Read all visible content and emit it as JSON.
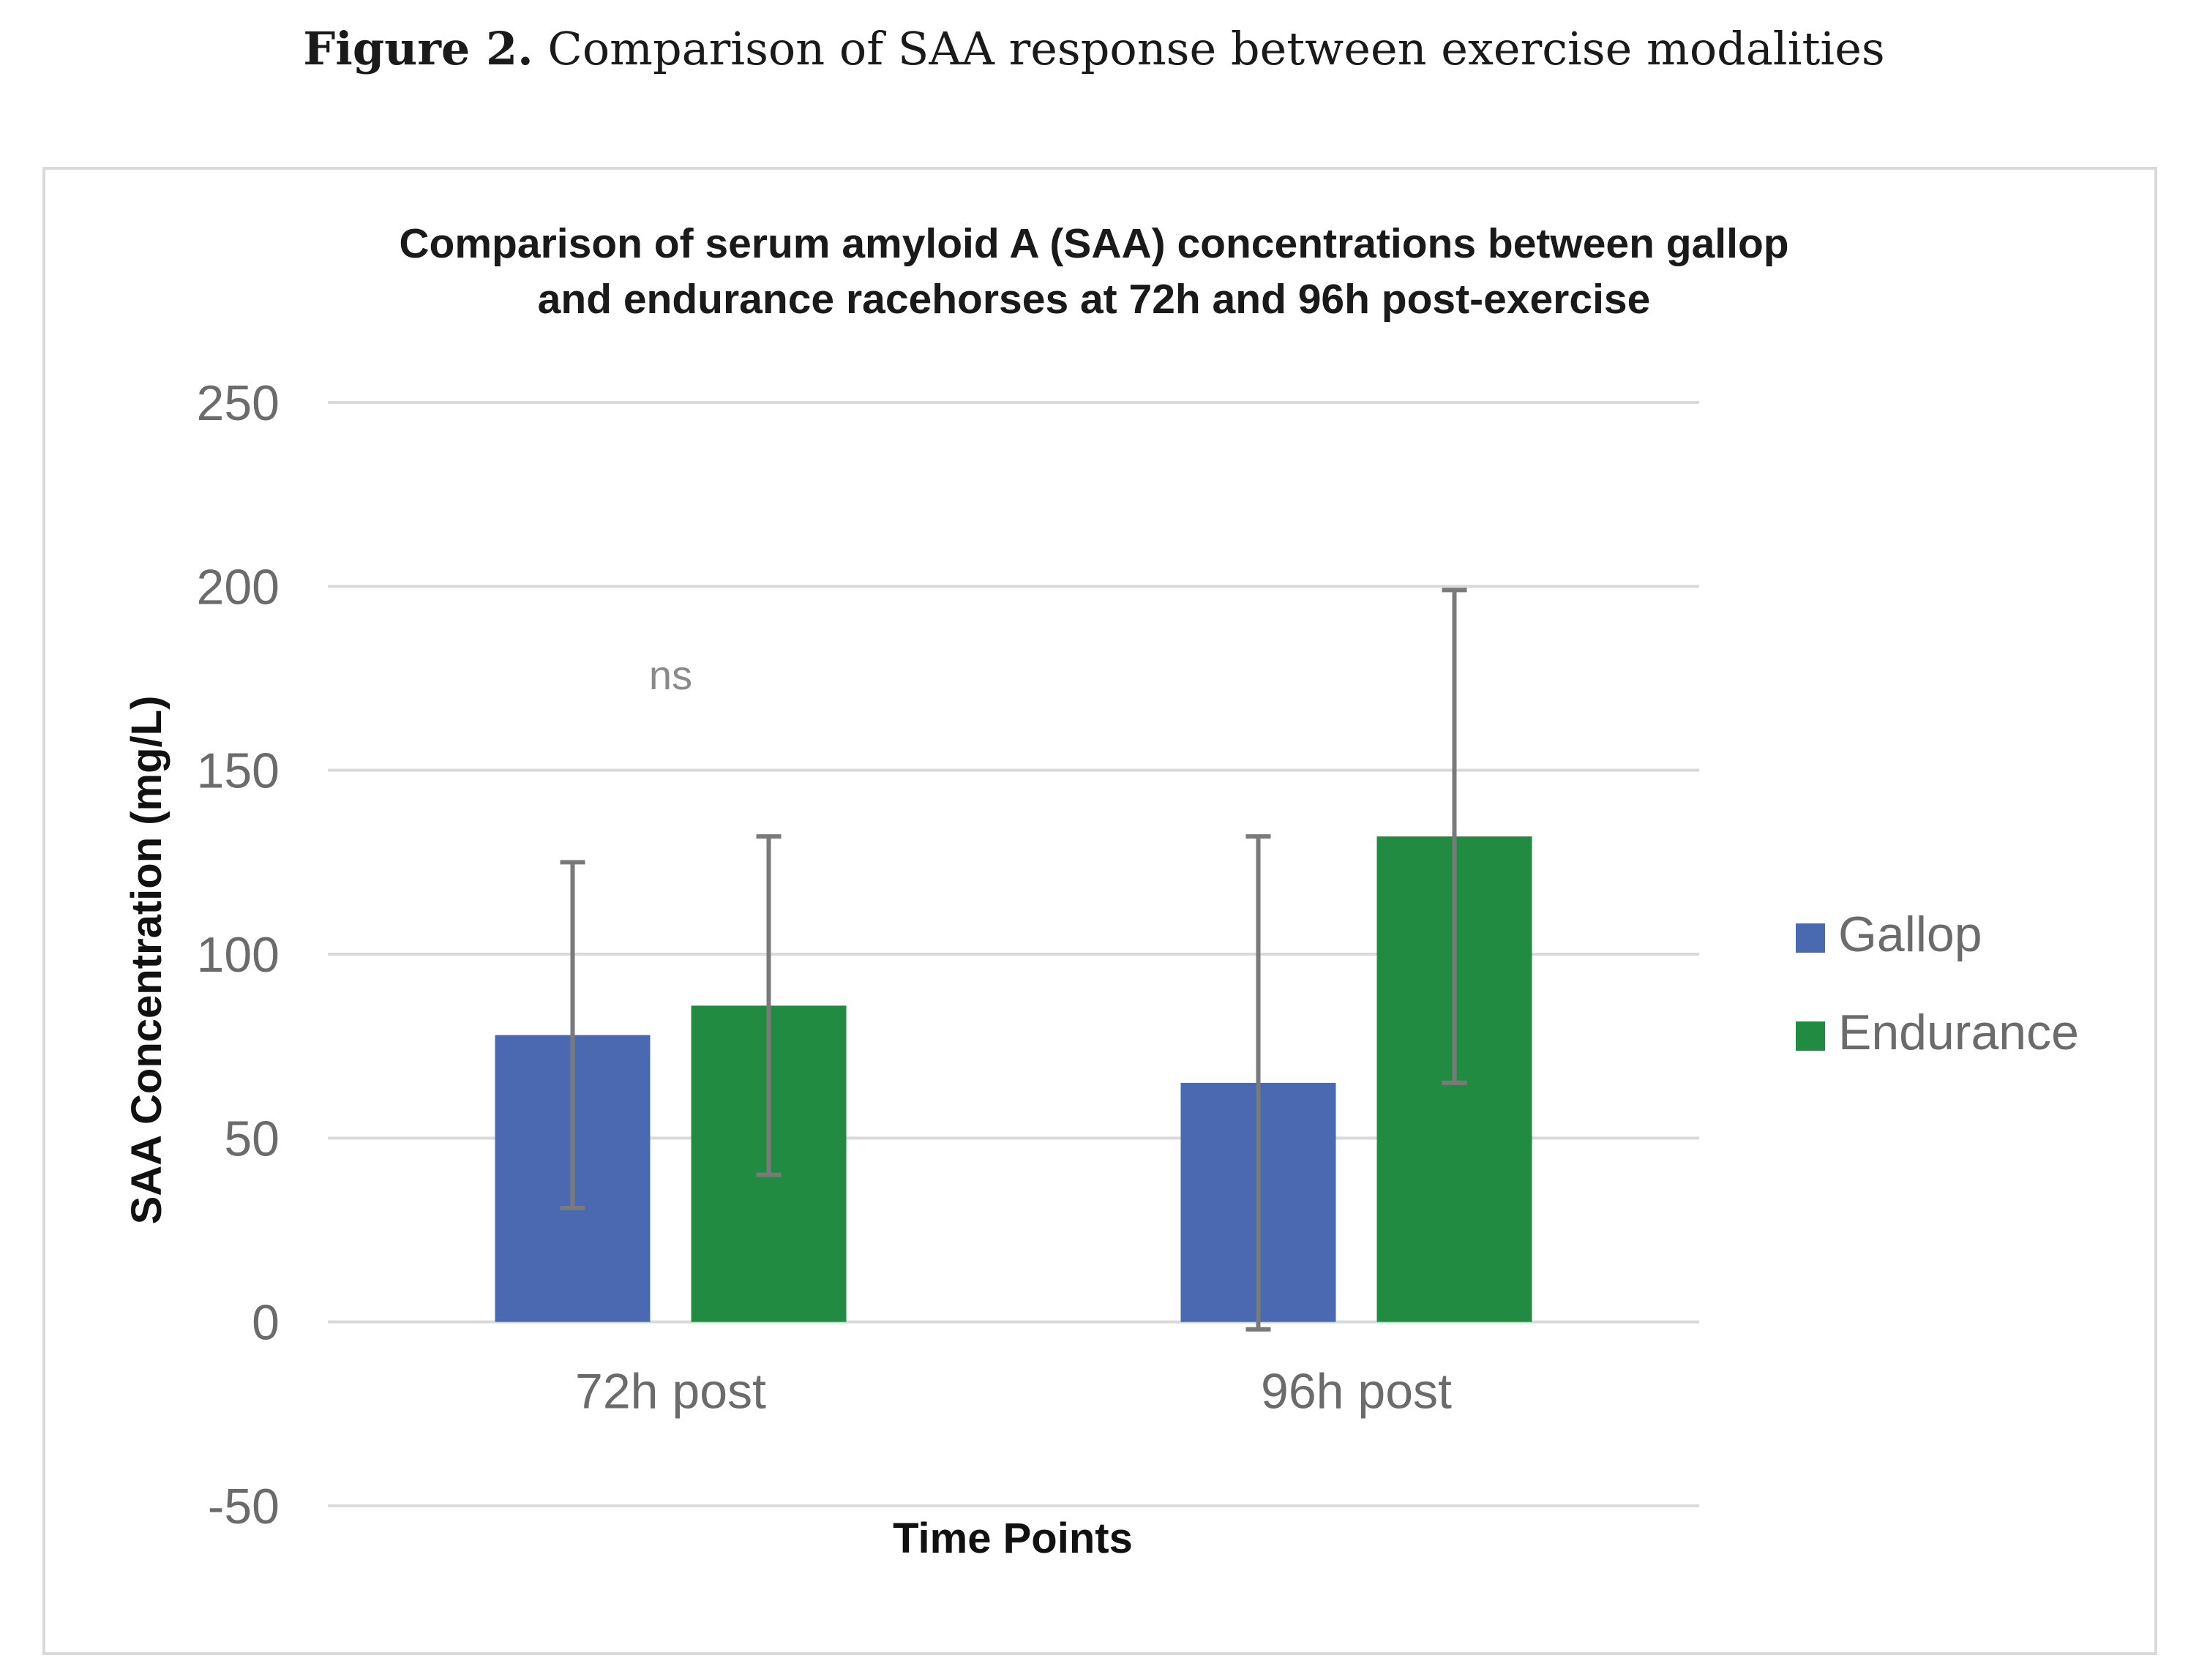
{
  "figure": {
    "label": "Figure 2.",
    "caption": "Comparison of SAA response between exercise modalities"
  },
  "chart_data": {
    "type": "bar",
    "title_lines": [
      "Comparison of serum amyloid A (SAA) concentrations between gallop",
      "and endurance racehorses at 72h and 96h post-exercise"
    ],
    "xlabel": "Time Points",
    "ylabel": "SAA Concentration (mg/L)",
    "categories": [
      "72h post",
      "96h post"
    ],
    "ylim": [
      -50,
      250
    ],
    "yticks": [
      -50,
      0,
      50,
      100,
      150,
      200,
      250
    ],
    "grid": true,
    "legend_position": "right",
    "series": [
      {
        "name": "Gallop",
        "color": "#4a69b0",
        "values": [
          78,
          65
        ],
        "errors": [
          47,
          67
        ]
      },
      {
        "name": "Endurance",
        "color": "#218c41",
        "values": [
          86,
          132
        ],
        "errors": [
          46,
          67
        ]
      }
    ],
    "annotations": [
      {
        "text": "ns",
        "category": "72h post"
      }
    ]
  },
  "colors": {
    "gridline": "#d9d9d9",
    "errorbar": "#7a7a7a"
  }
}
